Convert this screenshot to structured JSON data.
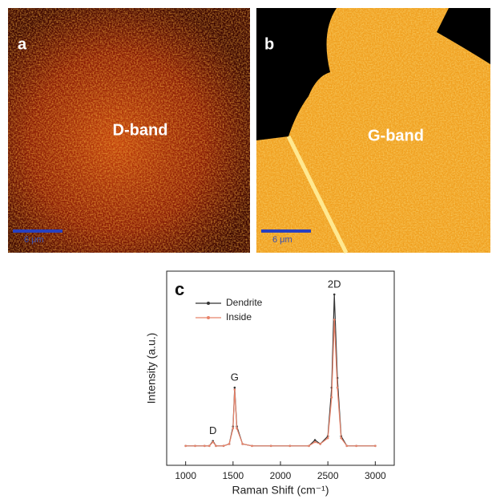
{
  "panels": [
    {
      "label": "a",
      "text": "D-band",
      "scale_bar": "6 μm"
    },
    {
      "label": "b",
      "text": "G-band",
      "scale_bar": "6 μm"
    }
  ],
  "chart_data": {
    "type": "line",
    "panel_label": "c",
    "xlabel": "Raman Shift (cm⁻¹)",
    "ylabel": "Intensity (a.u.)",
    "annotations": [
      "D",
      "G",
      "2D"
    ],
    "xlim": [
      800,
      3200
    ],
    "xticks": [
      1000,
      1500,
      2000,
      2500,
      3000
    ],
    "ylim": [
      0,
      1
    ],
    "x": [
      1000,
      1100,
      1200,
      1250,
      1288,
      1320,
      1400,
      1460,
      1500,
      1517,
      1540,
      1600,
      1700,
      1900,
      2100,
      2300,
      2364,
      2420,
      2500,
      2540,
      2568,
      2600,
      2640,
      2700,
      2800,
      3000
    ],
    "series": [
      {
        "name": "Dendrite",
        "color": "#333333",
        "values": [
          0.1,
          0.1,
          0.1,
          0.1,
          0.125,
          0.1,
          0.1,
          0.11,
          0.2,
          0.4,
          0.2,
          0.11,
          0.1,
          0.1,
          0.1,
          0.1,
          0.13,
          0.11,
          0.15,
          0.4,
          0.88,
          0.45,
          0.15,
          0.1,
          0.1,
          0.1
        ]
      },
      {
        "name": "Inside",
        "color": "#e8836a",
        "values": [
          0.1,
          0.1,
          0.1,
          0.1,
          0.12,
          0.1,
          0.1,
          0.11,
          0.19,
          0.39,
          0.19,
          0.11,
          0.1,
          0.1,
          0.1,
          0.1,
          0.12,
          0.11,
          0.14,
          0.35,
          0.75,
          0.4,
          0.14,
          0.1,
          0.1,
          0.1
        ]
      }
    ]
  }
}
